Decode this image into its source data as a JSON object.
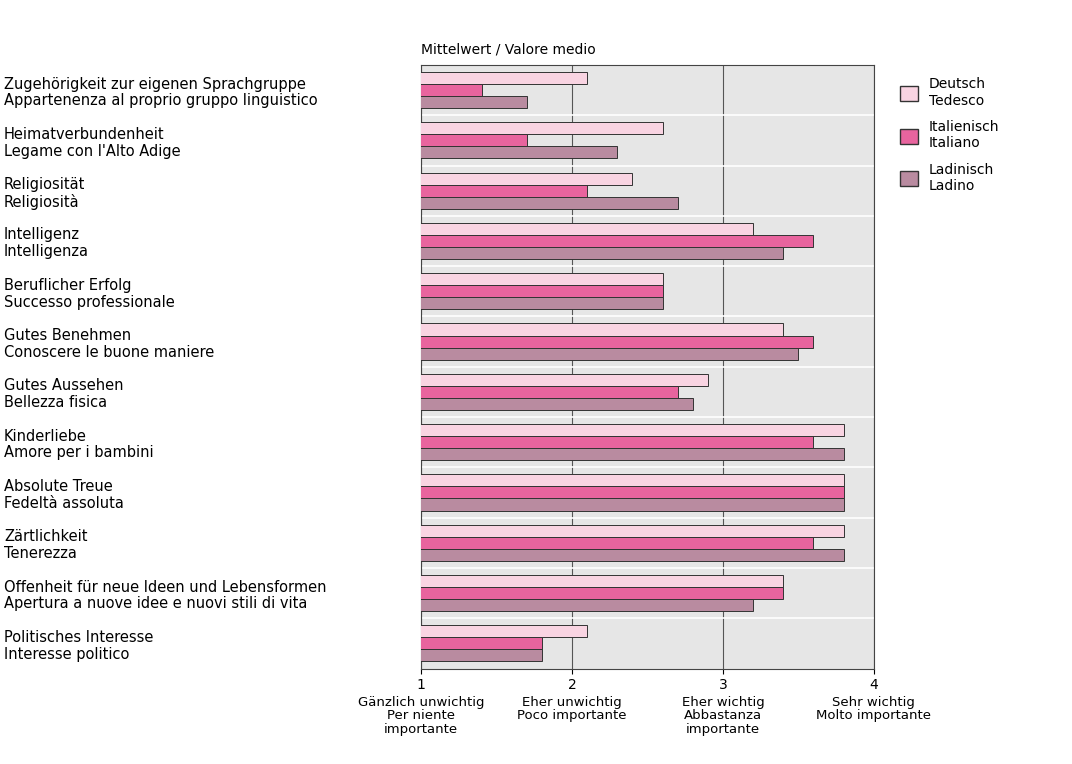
{
  "chart_data": {
    "type": "bar",
    "orientation": "horizontal",
    "title": "Mittelwert / Valore medio",
    "categories": [
      "Zugehörigkeit zur eigenen Sprachgruppe\nAppartenenza al proprio gruppo linguistico",
      "Heimatverbundenheit\nLegame con l'Alto Adige",
      "Religiosität\nReligiosità",
      "Intelligenz\nIntelligenza",
      "Beruflicher Erfolg\nSuccesso professionale",
      "Gutes Benehmen\nConoscere le buone maniere",
      "Gutes Aussehen\nBellezza fisica",
      "Kinderliebe\nAmore per i bambini",
      "Absolute Treue\nFedeltà assoluta",
      "Zärtlichkeit\nTenerezza",
      "Offenheit für neue Ideen und Lebensformen\nApertura a nuove idee e nuovi stili di vita",
      "Politisches Interesse\nInteresse politico"
    ],
    "series": [
      {
        "name": "Deutsch\nTedesco",
        "color": "#f9d4e2",
        "values": [
          2.1,
          2.6,
          2.4,
          3.2,
          2.6,
          3.4,
          2.9,
          3.8,
          3.8,
          3.8,
          3.4,
          2.1
        ]
      },
      {
        "name": "Italienisch\nItaliano",
        "color": "#e8649e",
        "values": [
          1.4,
          1.7,
          2.1,
          3.6,
          2.6,
          3.6,
          2.7,
          3.6,
          3.8,
          3.6,
          3.4,
          1.8
        ]
      },
      {
        "name": "Ladinisch\nLadino",
        "color": "#b98ba0",
        "values": [
          1.7,
          2.3,
          2.7,
          3.4,
          2.6,
          3.5,
          2.8,
          3.8,
          3.8,
          3.8,
          3.2,
          1.8
        ]
      }
    ],
    "xlim": [
      1,
      4
    ],
    "xticks": [
      1,
      2,
      3,
      4
    ],
    "annotations": [
      {
        "x": 1,
        "text": "Gänzlich unwichtig\nPer niente\nimportante"
      },
      {
        "x": 2,
        "text": "Eher unwichtig\nPoco importante"
      },
      {
        "x": 3,
        "text": "Eher wichtig\nAbbastanza\nimportante"
      },
      {
        "x": 4,
        "text": "Sehr wichtig\nMolto importante"
      }
    ],
    "grid": true,
    "legend": "upper left"
  }
}
